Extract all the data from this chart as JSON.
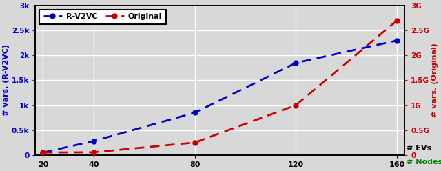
{
  "x": [
    20,
    40,
    80,
    120,
    160
  ],
  "blue_y": [
    50,
    280,
    850,
    1850,
    2300
  ],
  "red_y_actual": [
    50000000,
    55000000,
    250000000,
    1000000000,
    2700000000
  ],
  "blue_color": "#0000cc",
  "red_color": "#cc0000",
  "left_ylabel": "# vars. (R-V2VC)",
  "right_ylabel": "# vars. (Original)",
  "xlabel_black": "# EVs",
  "xlabel_green": "# Nodes",
  "left_ylim": [
    0,
    3000
  ],
  "right_ylim": [
    0,
    3000000000
  ],
  "left_yticks": [
    0,
    500,
    1000,
    1500,
    2000,
    2500,
    3000
  ],
  "left_yticklabels": [
    "0",
    "0.5k",
    "1k",
    "1.5k",
    "2k",
    "2.5k",
    "3k"
  ],
  "right_yticks": [
    0,
    500000000,
    1000000000,
    1500000000,
    2000000000,
    2500000000,
    3000000000
  ],
  "right_yticklabels": [
    "0",
    "0.5G",
    "1G",
    "1.5G",
    "2G",
    "2.5G",
    "3G"
  ],
  "xticks": [
    20,
    40,
    80,
    120,
    160
  ],
  "legend_labels": [
    "R-V2VC",
    "Original"
  ],
  "background_color": "#d8d8d8",
  "grid_color": "#ffffff",
  "figsize": [
    6.4,
    2.48
  ],
  "dpi": 100
}
